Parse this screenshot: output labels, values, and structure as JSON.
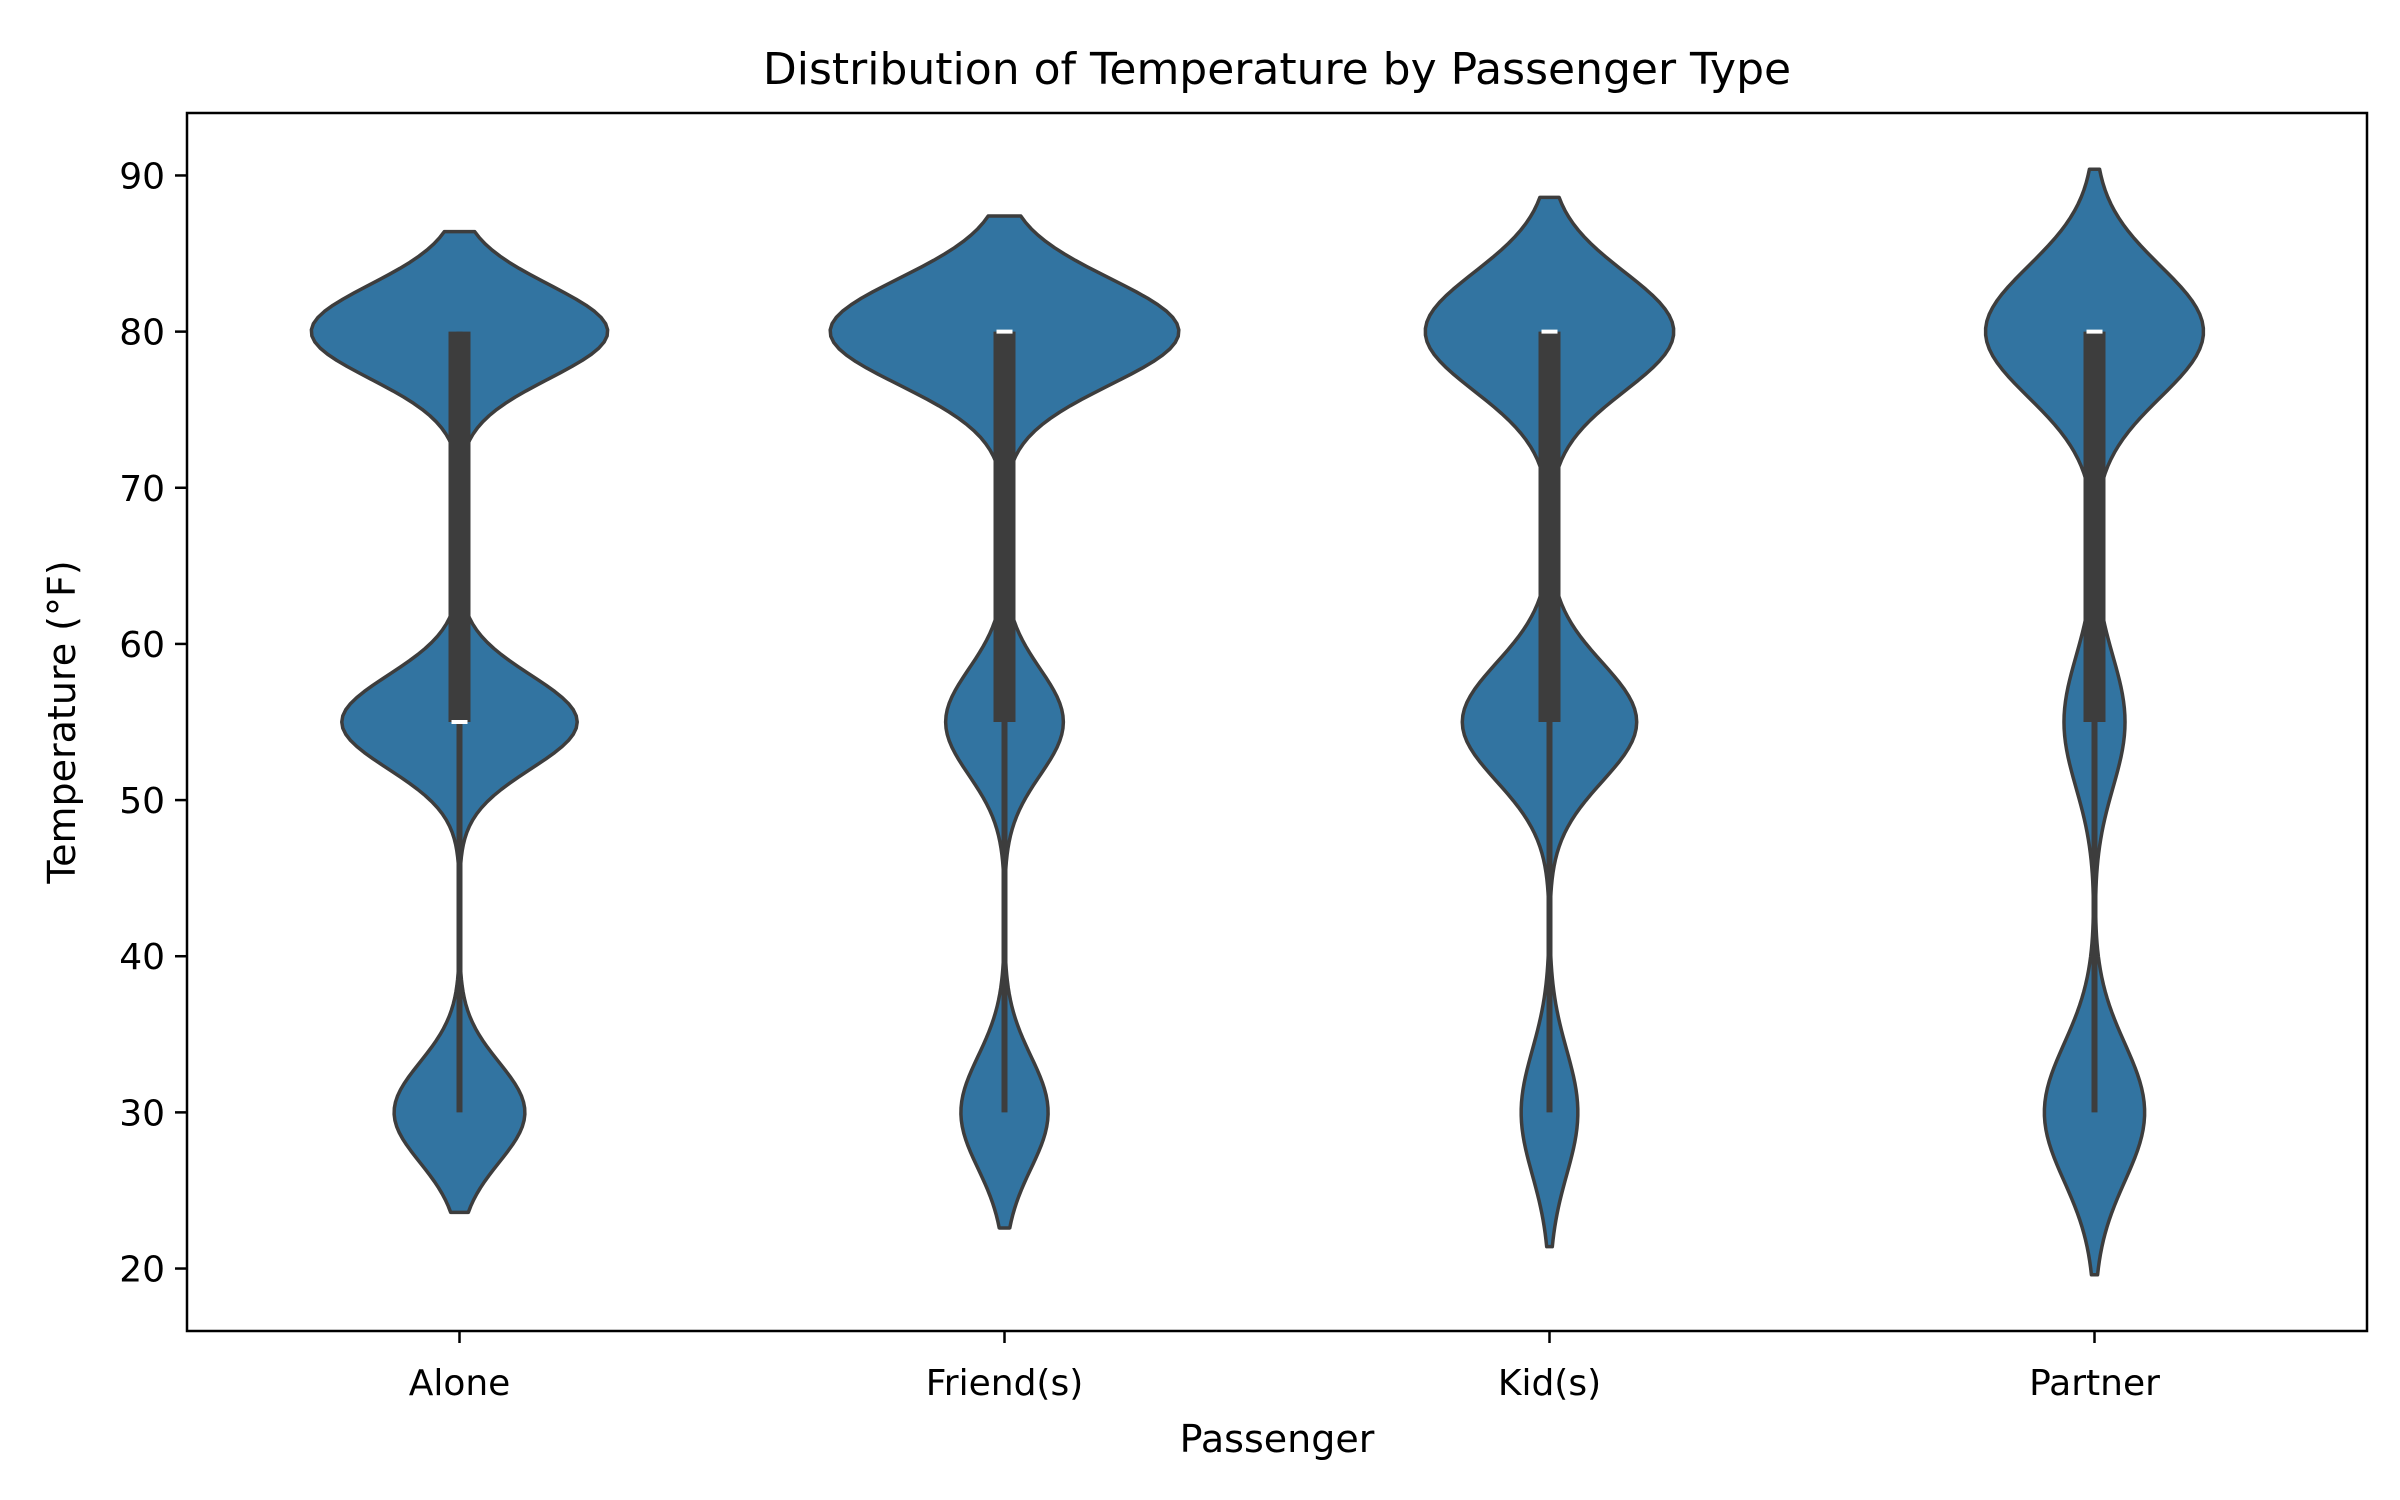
{
  "chart_data": {
    "type": "violin",
    "title": "Distribution of Temperature by Passenger Type",
    "xlabel": "Passenger",
    "ylabel": "Temperature (°F)",
    "ylim": [
      16,
      94
    ],
    "yticks": [
      20,
      30,
      40,
      50,
      60,
      70,
      80,
      90
    ],
    "yticks_text": [
      "20",
      "30",
      "40",
      "50",
      "60",
      "70",
      "80",
      "90"
    ],
    "grid": false,
    "legend": "none",
    "fill_color": "#3274a1",
    "edge_color": "#3d3d3d",
    "median_color": "#ffffff",
    "categories": [
      "Alone",
      "Friend(s)",
      "Kid(s)",
      "Partner"
    ],
    "series": [
      {
        "category": "Alone",
        "min": 30,
        "q1": 55,
        "median": 55,
        "q3": 80,
        "max": 80,
        "kde_range": [
          23.6,
          86.4
        ],
        "peaks": [
          {
            "temp": 30,
            "density": 0.3,
            "sd": 3.2
          },
          {
            "temp": 55,
            "density": 0.54,
            "sd": 3.0
          },
          {
            "temp": 80,
            "density": 0.68,
            "sd": 3.0
          }
        ]
      },
      {
        "category": "Friend(s)",
        "min": 30,
        "q1": 55,
        "median": 80,
        "q3": 80,
        "max": 80,
        "kde_range": [
          22.6,
          87.4
        ],
        "peaks": [
          {
            "temp": 30,
            "density": 0.2,
            "sd": 3.6
          },
          {
            "temp": 55,
            "density": 0.27,
            "sd": 3.4
          },
          {
            "temp": 80,
            "density": 0.8,
            "sd": 3.4
          }
        ]
      },
      {
        "category": "Kid(s)",
        "min": 30,
        "q1": 55,
        "median": 80,
        "q3": 80,
        "max": 80,
        "kde_range": [
          21.4,
          88.6
        ],
        "peaks": [
          {
            "temp": 30,
            "density": 0.13,
            "sd": 4.0
          },
          {
            "temp": 55,
            "density": 0.4,
            "sd": 3.8
          },
          {
            "temp": 80,
            "density": 0.57,
            "sd": 3.8
          }
        ]
      },
      {
        "category": "Partner",
        "min": 30,
        "q1": 55,
        "median": 80,
        "q3": 80,
        "max": 80,
        "kde_range": [
          19.6,
          90.4
        ],
        "peaks": [
          {
            "temp": 30,
            "density": 0.23,
            "sd": 4.4
          },
          {
            "temp": 55,
            "density": 0.14,
            "sd": 4.2
          },
          {
            "temp": 80,
            "density": 0.5,
            "sd": 4.2
          }
        ]
      }
    ]
  }
}
